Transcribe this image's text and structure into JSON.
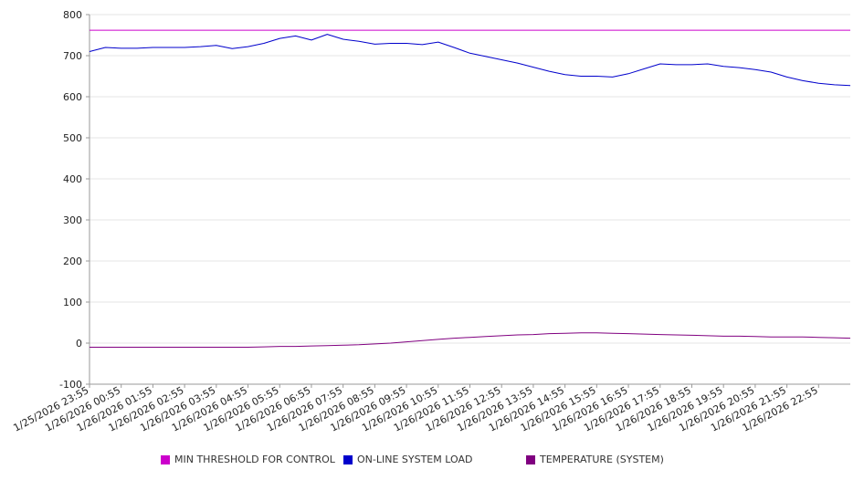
{
  "chart_data": {
    "type": "line",
    "title": "",
    "xlabel": "",
    "ylabel": "",
    "ylim": [
      -100,
      800
    ],
    "y_ticks": [
      800,
      700,
      600,
      500,
      400,
      300,
      200,
      100,
      0,
      -100
    ],
    "grid": true,
    "legend_position": "bottom",
    "x_tick_labels": [
      "1/25/2026 23:55",
      "1/26/2026 00:55",
      "1/26/2026 01:55",
      "1/26/2026 02:55",
      "1/26/2026 03:55",
      "1/26/2026 04:55",
      "1/26/2026 05:55",
      "1/26/2026 06:55",
      "1/26/2026 07:55",
      "1/26/2026 08:55",
      "1/26/2026 09:55",
      "1/26/2026 10:55",
      "1/26/2026 11:55",
      "1/26/2026 12:55",
      "1/26/2026 13:55",
      "1/26/2026 14:55",
      "1/26/2026 15:55",
      "1/26/2026 16:55",
      "1/26/2026 17:55",
      "1/26/2026 18:55",
      "1/26/2026 19:55",
      "1/26/2026 20:55",
      "1/26/2026 21:55",
      "1/26/2026 22:55"
    ],
    "x": [
      "1/25/2026 23:55",
      "1/26/2026 00:25",
      "1/26/2026 00:55",
      "1/26/2026 01:25",
      "1/26/2026 01:55",
      "1/26/2026 02:25",
      "1/26/2026 02:55",
      "1/26/2026 03:25",
      "1/26/2026 03:55",
      "1/26/2026 04:25",
      "1/26/2026 04:55",
      "1/26/2026 05:25",
      "1/26/2026 05:55",
      "1/26/2026 06:25",
      "1/26/2026 06:55",
      "1/26/2026 07:25",
      "1/26/2026 07:55",
      "1/26/2026 08:25",
      "1/26/2026 08:55",
      "1/26/2026 09:25",
      "1/26/2026 09:55",
      "1/26/2026 10:25",
      "1/26/2026 10:55",
      "1/26/2026 11:25",
      "1/26/2026 11:55",
      "1/26/2026 12:25",
      "1/26/2026 12:55",
      "1/26/2026 13:25",
      "1/26/2026 13:55",
      "1/26/2026 14:25",
      "1/26/2026 14:55",
      "1/26/2026 15:25",
      "1/26/2026 15:55",
      "1/26/2026 16:25",
      "1/26/2026 16:55",
      "1/26/2026 17:25",
      "1/26/2026 17:55",
      "1/26/2026 18:25",
      "1/26/2026 18:55",
      "1/26/2026 19:25",
      "1/26/2026 19:55",
      "1/26/2026 20:25",
      "1/26/2026 20:55",
      "1/26/2026 21:25",
      "1/26/2026 21:55",
      "1/26/2026 22:25",
      "1/26/2026 22:55",
      "1/26/2026 23:25",
      "1/26/2026 23:55"
    ],
    "series": [
      {
        "name": "MIN THRESHOLD FOR CONTROL",
        "color": "#cc00cc",
        "values": [
          762,
          762,
          762,
          762,
          762,
          762,
          762,
          762,
          762,
          762,
          762,
          762,
          762,
          762,
          762,
          762,
          762,
          762,
          762,
          762,
          762,
          762,
          762,
          762,
          762,
          762,
          762,
          762,
          762,
          762,
          762,
          762,
          762,
          762,
          762,
          762,
          762,
          762,
          762,
          762,
          762,
          762,
          762,
          762,
          762,
          762,
          762,
          762,
          762
        ]
      },
      {
        "name": "ON-LINE SYSTEM LOAD",
        "color": "#0000cc",
        "values": [
          710,
          720,
          718,
          718,
          720,
          720,
          720,
          722,
          725,
          717,
          722,
          730,
          742,
          748,
          738,
          752,
          740,
          735,
          728,
          730,
          730,
          727,
          733,
          720,
          706,
          698,
          690,
          682,
          672,
          662,
          654,
          650,
          650,
          648,
          656,
          668,
          680,
          678,
          678,
          680,
          674,
          671,
          666,
          660,
          648,
          639,
          633,
          629,
          627
        ]
      },
      {
        "name": "TEMPERATURE (SYSTEM)",
        "color": "#800080",
        "values": [
          -10,
          -10,
          -10,
          -10,
          -10,
          -10,
          -10,
          -10,
          -10,
          -10,
          -10,
          -9,
          -8,
          -8,
          -7,
          -6,
          -5,
          -4,
          -2,
          0,
          3,
          6,
          9,
          12,
          14,
          16,
          18,
          20,
          21,
          23,
          24,
          25,
          25,
          24,
          23,
          22,
          21,
          20,
          19,
          18,
          17,
          17,
          16,
          15,
          15,
          15,
          14,
          13,
          12
        ]
      }
    ]
  }
}
